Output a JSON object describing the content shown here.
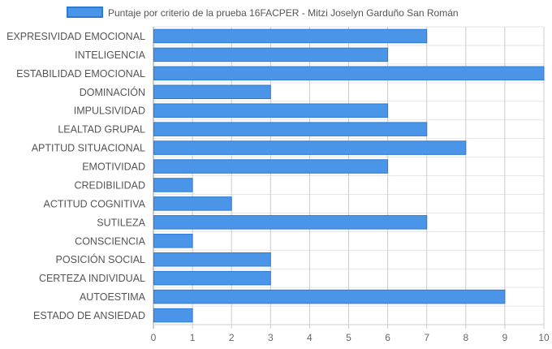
{
  "chart_data": {
    "type": "bar",
    "orientation": "horizontal",
    "categories": [
      "EXPRESIVIDAD EMOCIONAL",
      "INTELIGENCIA",
      "ESTABILIDAD EMOCIONAL",
      "DOMINACIÓN",
      "IMPULSIVIDAD",
      "LEALTAD GRUPAL",
      "APTITUD SITUACIONAL",
      "EMOTIVIDAD",
      "CREDIBILIDAD",
      "ACTITUD COGNITIVA",
      "SUTILEZA",
      "CONSCIENCIA",
      "POSICIÓN SOCIAL",
      "CERTEZA INDIVIDUAL",
      "AUTOESTIMA",
      "ESTADO DE ANSIEDAD"
    ],
    "series": [
      {
        "name": "Puntaje por criterio de la prueba 16FACPER - Mitzi Joselyn Garduño San Román",
        "values": [
          7,
          6,
          10,
          3,
          6,
          7,
          8,
          6,
          1,
          2,
          7,
          1,
          3,
          3,
          9,
          1
        ],
        "color": "#4a95e8",
        "border_color": "#2b7ad6"
      }
    ],
    "xlim": [
      0,
      10
    ],
    "xticks": [
      "0",
      "1",
      "2",
      "3",
      "4",
      "5",
      "6",
      "7",
      "8",
      "9",
      "10"
    ],
    "grid": true,
    "legend_position": "top-center"
  }
}
